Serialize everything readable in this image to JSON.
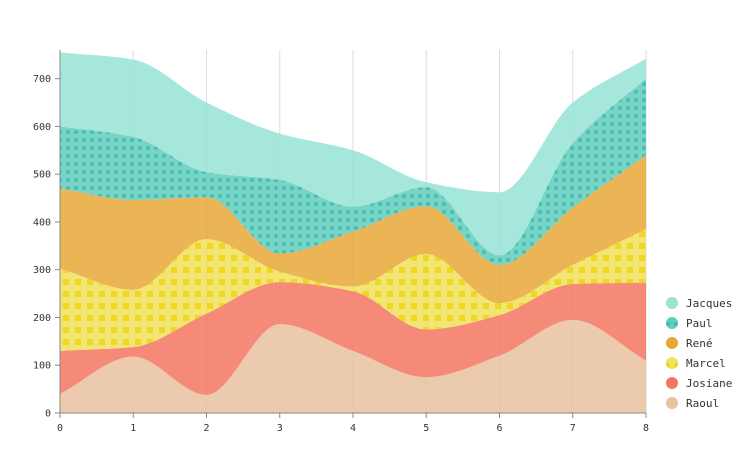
{
  "chart_data": {
    "type": "area",
    "stacked": true,
    "x": [
      0,
      1,
      2,
      3,
      4,
      5,
      6,
      7,
      8
    ],
    "xlim": [
      0,
      8
    ],
    "ylim": [
      0,
      760
    ],
    "x_ticks": [
      0,
      1,
      2,
      3,
      4,
      5,
      6,
      7,
      8
    ],
    "y_ticks": [
      0,
      100,
      200,
      300,
      400,
      500,
      600,
      700
    ],
    "grid": "vertical",
    "legend_position": "right-bottom",
    "series": [
      {
        "name": "Raoul",
        "color": "#e8c1a0",
        "pattern": "none",
        "values": [
          40,
          118,
          38,
          186,
          130,
          75,
          120,
          195,
          110
        ]
      },
      {
        "name": "Josiane",
        "color": "#f47560",
        "pattern": "none",
        "values": [
          90,
          20,
          170,
          88,
          125,
          100,
          85,
          75,
          163
        ]
      },
      {
        "name": "Marcel",
        "color": "#f1e15b",
        "pattern": "squares",
        "values": [
          172,
          120,
          156,
          22,
          10,
          158,
          25,
          40,
          112
        ]
      },
      {
        "name": "René",
        "color": "#e8a838",
        "pattern": "none",
        "values": [
          168,
          188,
          88,
          38,
          115,
          100,
          80,
          120,
          155
        ]
      },
      {
        "name": "Paul",
        "color": "#61cdbb",
        "pattern": "dots",
        "values": [
          130,
          132,
          52,
          154,
          52,
          40,
          20,
          135,
          160
        ]
      },
      {
        "name": "Jacques",
        "color": "#97e3d5",
        "pattern": "none",
        "values": [
          155,
          162,
          146,
          97,
          118,
          10,
          132,
          85,
          42
        ]
      }
    ]
  }
}
